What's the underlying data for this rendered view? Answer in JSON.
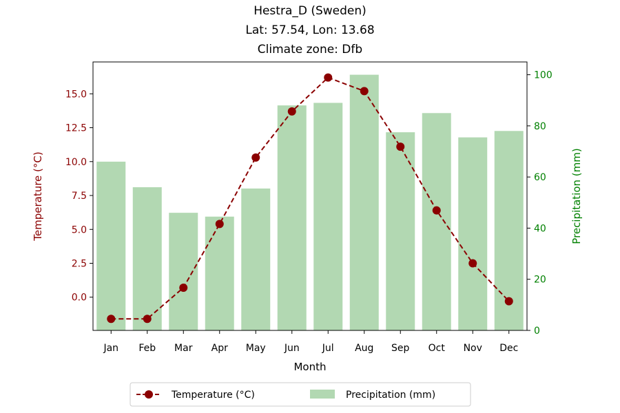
{
  "chart_data": {
    "type": "bar",
    "title_lines": [
      "Hestra_D (Sweden)",
      "Lat: 57.54, Lon: 13.68",
      "Climate zone: Dfb"
    ],
    "categories": [
      "Jan",
      "Feb",
      "Mar",
      "Apr",
      "May",
      "Jun",
      "Jul",
      "Aug",
      "Sep",
      "Oct",
      "Nov",
      "Dec"
    ],
    "xlabel": "Month",
    "temperature": {
      "name": "Temperature (°C)",
      "axis_label": "Temperature (°C)",
      "color": "#8b0000",
      "style": "dashed line with circle markers",
      "values": [
        -1.6,
        -1.6,
        0.7,
        5.4,
        10.3,
        13.7,
        16.2,
        15.2,
        11.1,
        6.4,
        2.5,
        -0.3
      ],
      "ylim": [
        -2.45,
        17.35
      ],
      "ticks": [
        "0.0",
        "2.5",
        "5.0",
        "7.5",
        "10.0",
        "12.5",
        "15.0"
      ]
    },
    "precipitation": {
      "name": "Precipitation (mm)",
      "axis_label": "Precipitation (mm)",
      "color": "#b2d8b2",
      "axis_color": "#008000",
      "values": [
        66,
        56,
        46,
        44.5,
        55.5,
        88,
        89,
        100,
        77.5,
        85,
        75.5,
        78
      ],
      "ylim": [
        0,
        105
      ],
      "ticks": [
        "0",
        "20",
        "40",
        "60",
        "80",
        "100"
      ]
    },
    "legend": {
      "placement": "bottom-center",
      "entries": [
        "Temperature (°C)",
        "Precipitation (mm)"
      ]
    },
    "grid": false
  }
}
